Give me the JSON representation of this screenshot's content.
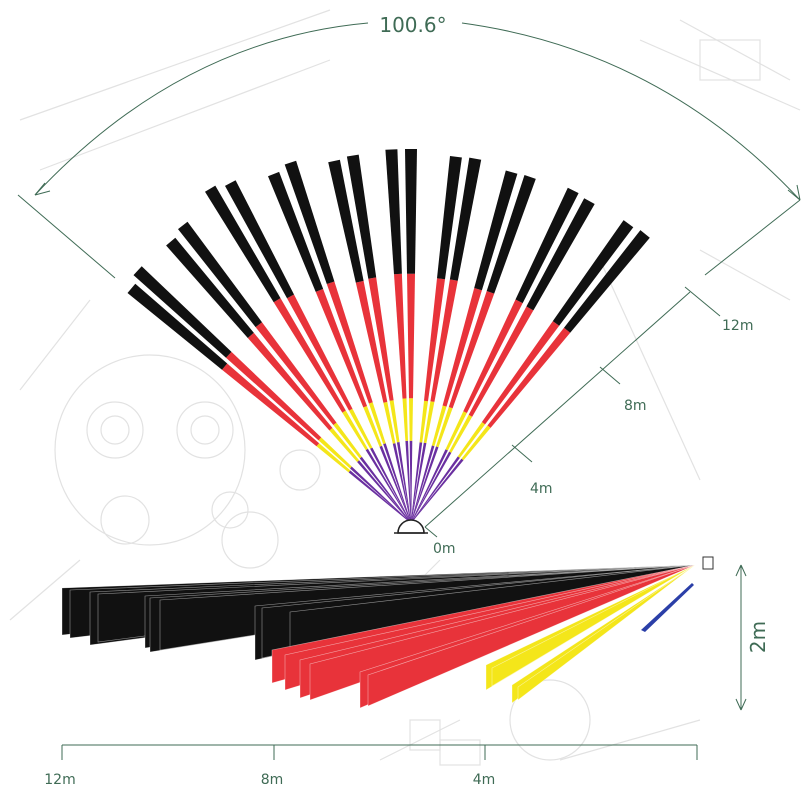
{
  "top_view": {
    "angle_label": "100.6°",
    "range_labels": {
      "r12": "12m",
      "r8": "8m",
      "r4": "4m",
      "r0": "0m"
    },
    "beam_count": 20,
    "zone_max_m": 12,
    "zones_m": {
      "purple": 0.6,
      "yellow": 4,
      "red": 8,
      "black": 12
    }
  },
  "side_view": {
    "height_label": "2m",
    "scale_labels": {
      "s12": "12m",
      "s8": "8m",
      "s4": "4m"
    }
  },
  "colors": {
    "black_zone": "#111111",
    "red_zone": "#e8333a",
    "yellow_zone": "#f4e61a",
    "purple_zone": "#6a2fa0",
    "blue_zone": "#2b3fa8",
    "annotation": "#3f6b55",
    "background_drawing": "#e3e3e3"
  }
}
